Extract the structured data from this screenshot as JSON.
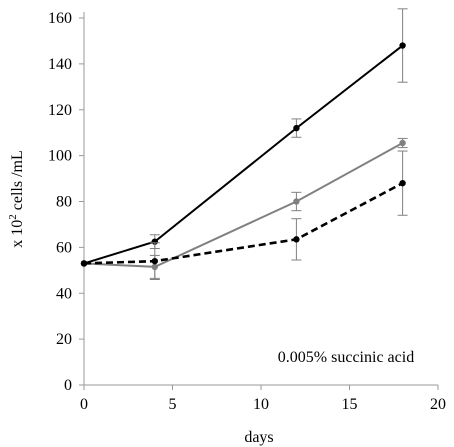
{
  "chart_data": {
    "type": "line",
    "xlabel": "days",
    "ylabel_text": "x 10",
    "ylabel_sup": "2",
    "ylabel_rest": " cells /mL",
    "xlim": [
      0,
      20
    ],
    "ylim": [
      0,
      160
    ],
    "x_ticks": [
      "0",
      "5",
      "10",
      "15",
      "20"
    ],
    "y_ticks": [
      "0",
      "20",
      "40",
      "60",
      "80",
      "100",
      "120",
      "140",
      "160"
    ],
    "annotation": "0.005% succinic acid",
    "grid": false,
    "series": [
      {
        "style": "solid",
        "color": "#000000",
        "marker_color": "#000000",
        "x": [
          0,
          4,
          12,
          18
        ],
        "y": [
          53,
          62.5,
          112,
          148
        ],
        "err": [
          0,
          3,
          4,
          16
        ]
      },
      {
        "style": "solid",
        "color": "#808080",
        "marker_color": "#808080",
        "x": [
          0,
          4,
          12,
          18
        ],
        "y": [
          53,
          51.5,
          80,
          105.5
        ],
        "err": [
          0,
          5,
          4,
          2
        ]
      },
      {
        "style": "dashed",
        "color": "#000000",
        "marker_color": "#000000",
        "x": [
          0,
          4,
          12,
          18
        ],
        "y": [
          53,
          54,
          63.5,
          88
        ],
        "err": [
          0,
          8,
          9,
          14
        ]
      }
    ]
  }
}
